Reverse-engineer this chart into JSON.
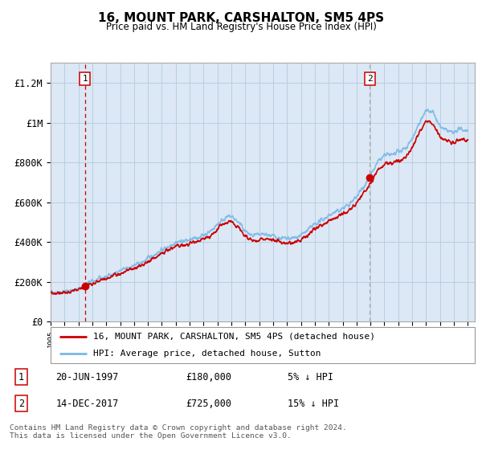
{
  "title": "16, MOUNT PARK, CARSHALTON, SM5 4PS",
  "subtitle": "Price paid vs. HM Land Registry's House Price Index (HPI)",
  "legend_line1": "16, MOUNT PARK, CARSHALTON, SM5 4PS (detached house)",
  "legend_line2": "HPI: Average price, detached house, Sutton",
  "annotation1_label": "1",
  "annotation1_date": "20-JUN-1997",
  "annotation1_price": "£180,000",
  "annotation1_hpi": "5% ↓ HPI",
  "annotation2_label": "2",
  "annotation2_date": "14-DEC-2017",
  "annotation2_price": "£725,000",
  "annotation2_hpi": "15% ↓ HPI",
  "footer": "Contains HM Land Registry data © Crown copyright and database right 2024.\nThis data is licensed under the Open Government Licence v3.0.",
  "sale1_year": 1997.47,
  "sale1_value": 180000,
  "sale2_year": 2017.95,
  "sale2_value": 725000,
  "hpi_color": "#7ab8e8",
  "price_color": "#cc0000",
  "vline1_color": "#cc0000",
  "vline2_color": "#aaaaaa",
  "plot_bg": "#dce8f5",
  "grid_color": "#b8cfe0",
  "ylim_max": 1300000,
  "xmin": 1995,
  "xmax": 2025.5
}
